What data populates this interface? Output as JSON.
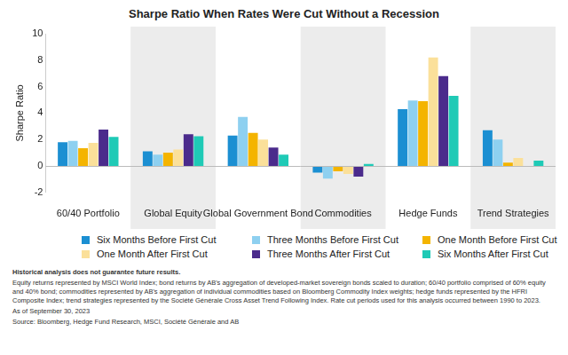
{
  "chart_data": {
    "type": "bar",
    "title": "Sharpe Ratio When Rates Were Cut Without a Recession",
    "y_label": "Sharpe Ratio",
    "categories": [
      "60/40 Portfolio",
      "Global Equity",
      "Global Government Bond",
      "Commodities",
      "Hedge Funds",
      "Trend Strategies"
    ],
    "series": [
      {
        "name": "Six Months Before First Cut",
        "color": "#1b8fd2",
        "values": [
          1.8,
          1.1,
          2.3,
          -0.5,
          4.3,
          2.7
        ]
      },
      {
        "name": "Three Months Before First Cut",
        "color": "#8ed0f0",
        "values": [
          1.9,
          0.85,
          3.7,
          -0.95,
          4.95,
          2.0
        ]
      },
      {
        "name": "One Month Before First Cut",
        "color": "#f4b400",
        "values": [
          1.35,
          1.0,
          2.5,
          -0.4,
          4.9,
          0.25
        ]
      },
      {
        "name": "One Month After First Cut",
        "color": "#fbe09a",
        "values": [
          1.75,
          1.25,
          2.0,
          -0.6,
          8.2,
          0.6
        ]
      },
      {
        "name": "Three Months After First Cut",
        "color": "#4b2b8c",
        "values": [
          2.75,
          2.4,
          1.4,
          -0.8,
          6.8,
          0.0
        ]
      },
      {
        "name": "Six Months After First Cut",
        "color": "#1fcab6",
        "values": [
          2.2,
          2.25,
          0.85,
          0.15,
          5.3,
          0.4
        ]
      }
    ],
    "ylim": [
      -2,
      10
    ],
    "yticks": [
      -2,
      0,
      2,
      4,
      6,
      8,
      10
    ],
    "grid": false,
    "legend": "bottom",
    "data_labels": false,
    "notes": [
      "Historical analysis does not guarantee future results.",
      "Equity returns represented by MSCI World Index; bond returns by AB's aggregation of developed-market sovereign bonds scaled to duration; 60/40 portfolio comprised of  60% equity and 40% bond; commodities represented by AB's aggregation of individual commodities based on Bloomberg Commodity Index weights; hedge funds represented by the HFRI Composite Index; trend strategies represented by the Société Générale Cross Asset Trend Following Index. Rate cut periods used for this analysis occurred between 1990 to 2023.",
      "As of September 30, 2023",
      "Source: Bloomberg, Hedge Fund Research, MSCI, Société Générale and AB"
    ]
  }
}
